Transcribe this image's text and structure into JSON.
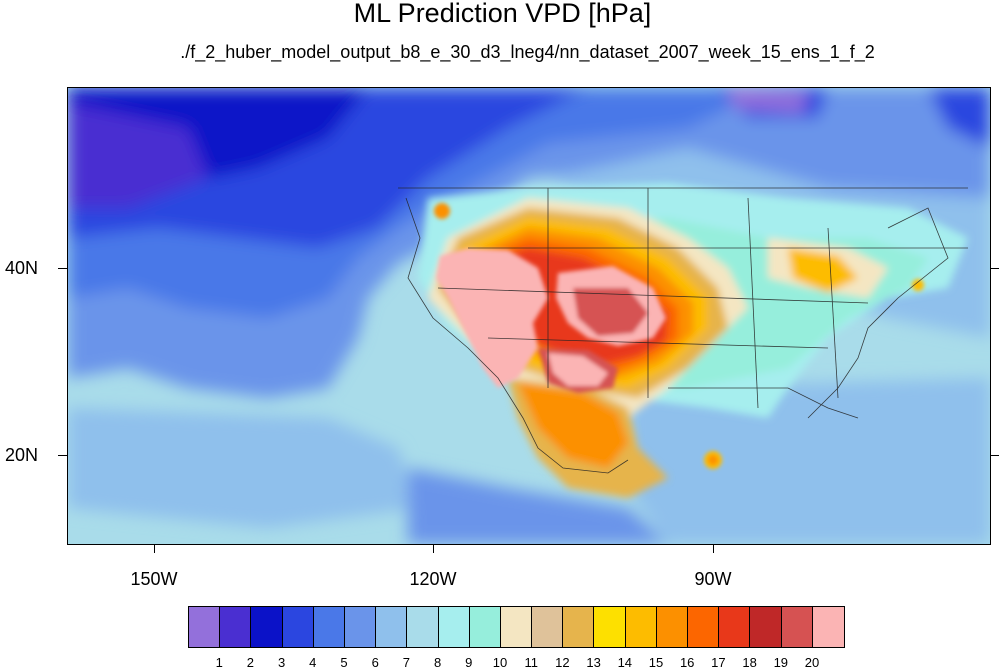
{
  "title": "ML Prediction VPD [hPa]",
  "subtitle": "./f_2_huber_model_output_b8_e_30_d3_lneg4/nn_dataset_2007_week_15_ens_1_f_2",
  "map": {
    "region": "North America and eastern Pacific",
    "lat_range": [
      10,
      59
    ],
    "lon_range": [
      -160,
      -61
    ],
    "lat_ticks": [
      "20N",
      "40N"
    ],
    "lon_ticks": [
      "150W",
      "120W",
      "90W"
    ],
    "field": "vapor pressure deficit"
  },
  "colorbar": {
    "labels": [
      "1",
      "2",
      "3",
      "4",
      "5",
      "6",
      "7",
      "8",
      "9",
      "10",
      "11",
      "12",
      "13",
      "14",
      "15",
      "16",
      "17",
      "18",
      "19",
      "20"
    ],
    "colors": [
      "#9370db",
      "#4a2fd1",
      "#0b12c8",
      "#2b46e0",
      "#4a78e8",
      "#6a94ea",
      "#8fc0ec",
      "#a9dcea",
      "#a6eeee",
      "#96eedc",
      "#f4e6c2",
      "#dfc29a",
      "#e6b44c",
      "#fde000",
      "#fdbc00",
      "#fc9000",
      "#fc6600",
      "#e8381a",
      "#bf2828",
      "#d65252",
      "#fbb4b4"
    ]
  }
}
